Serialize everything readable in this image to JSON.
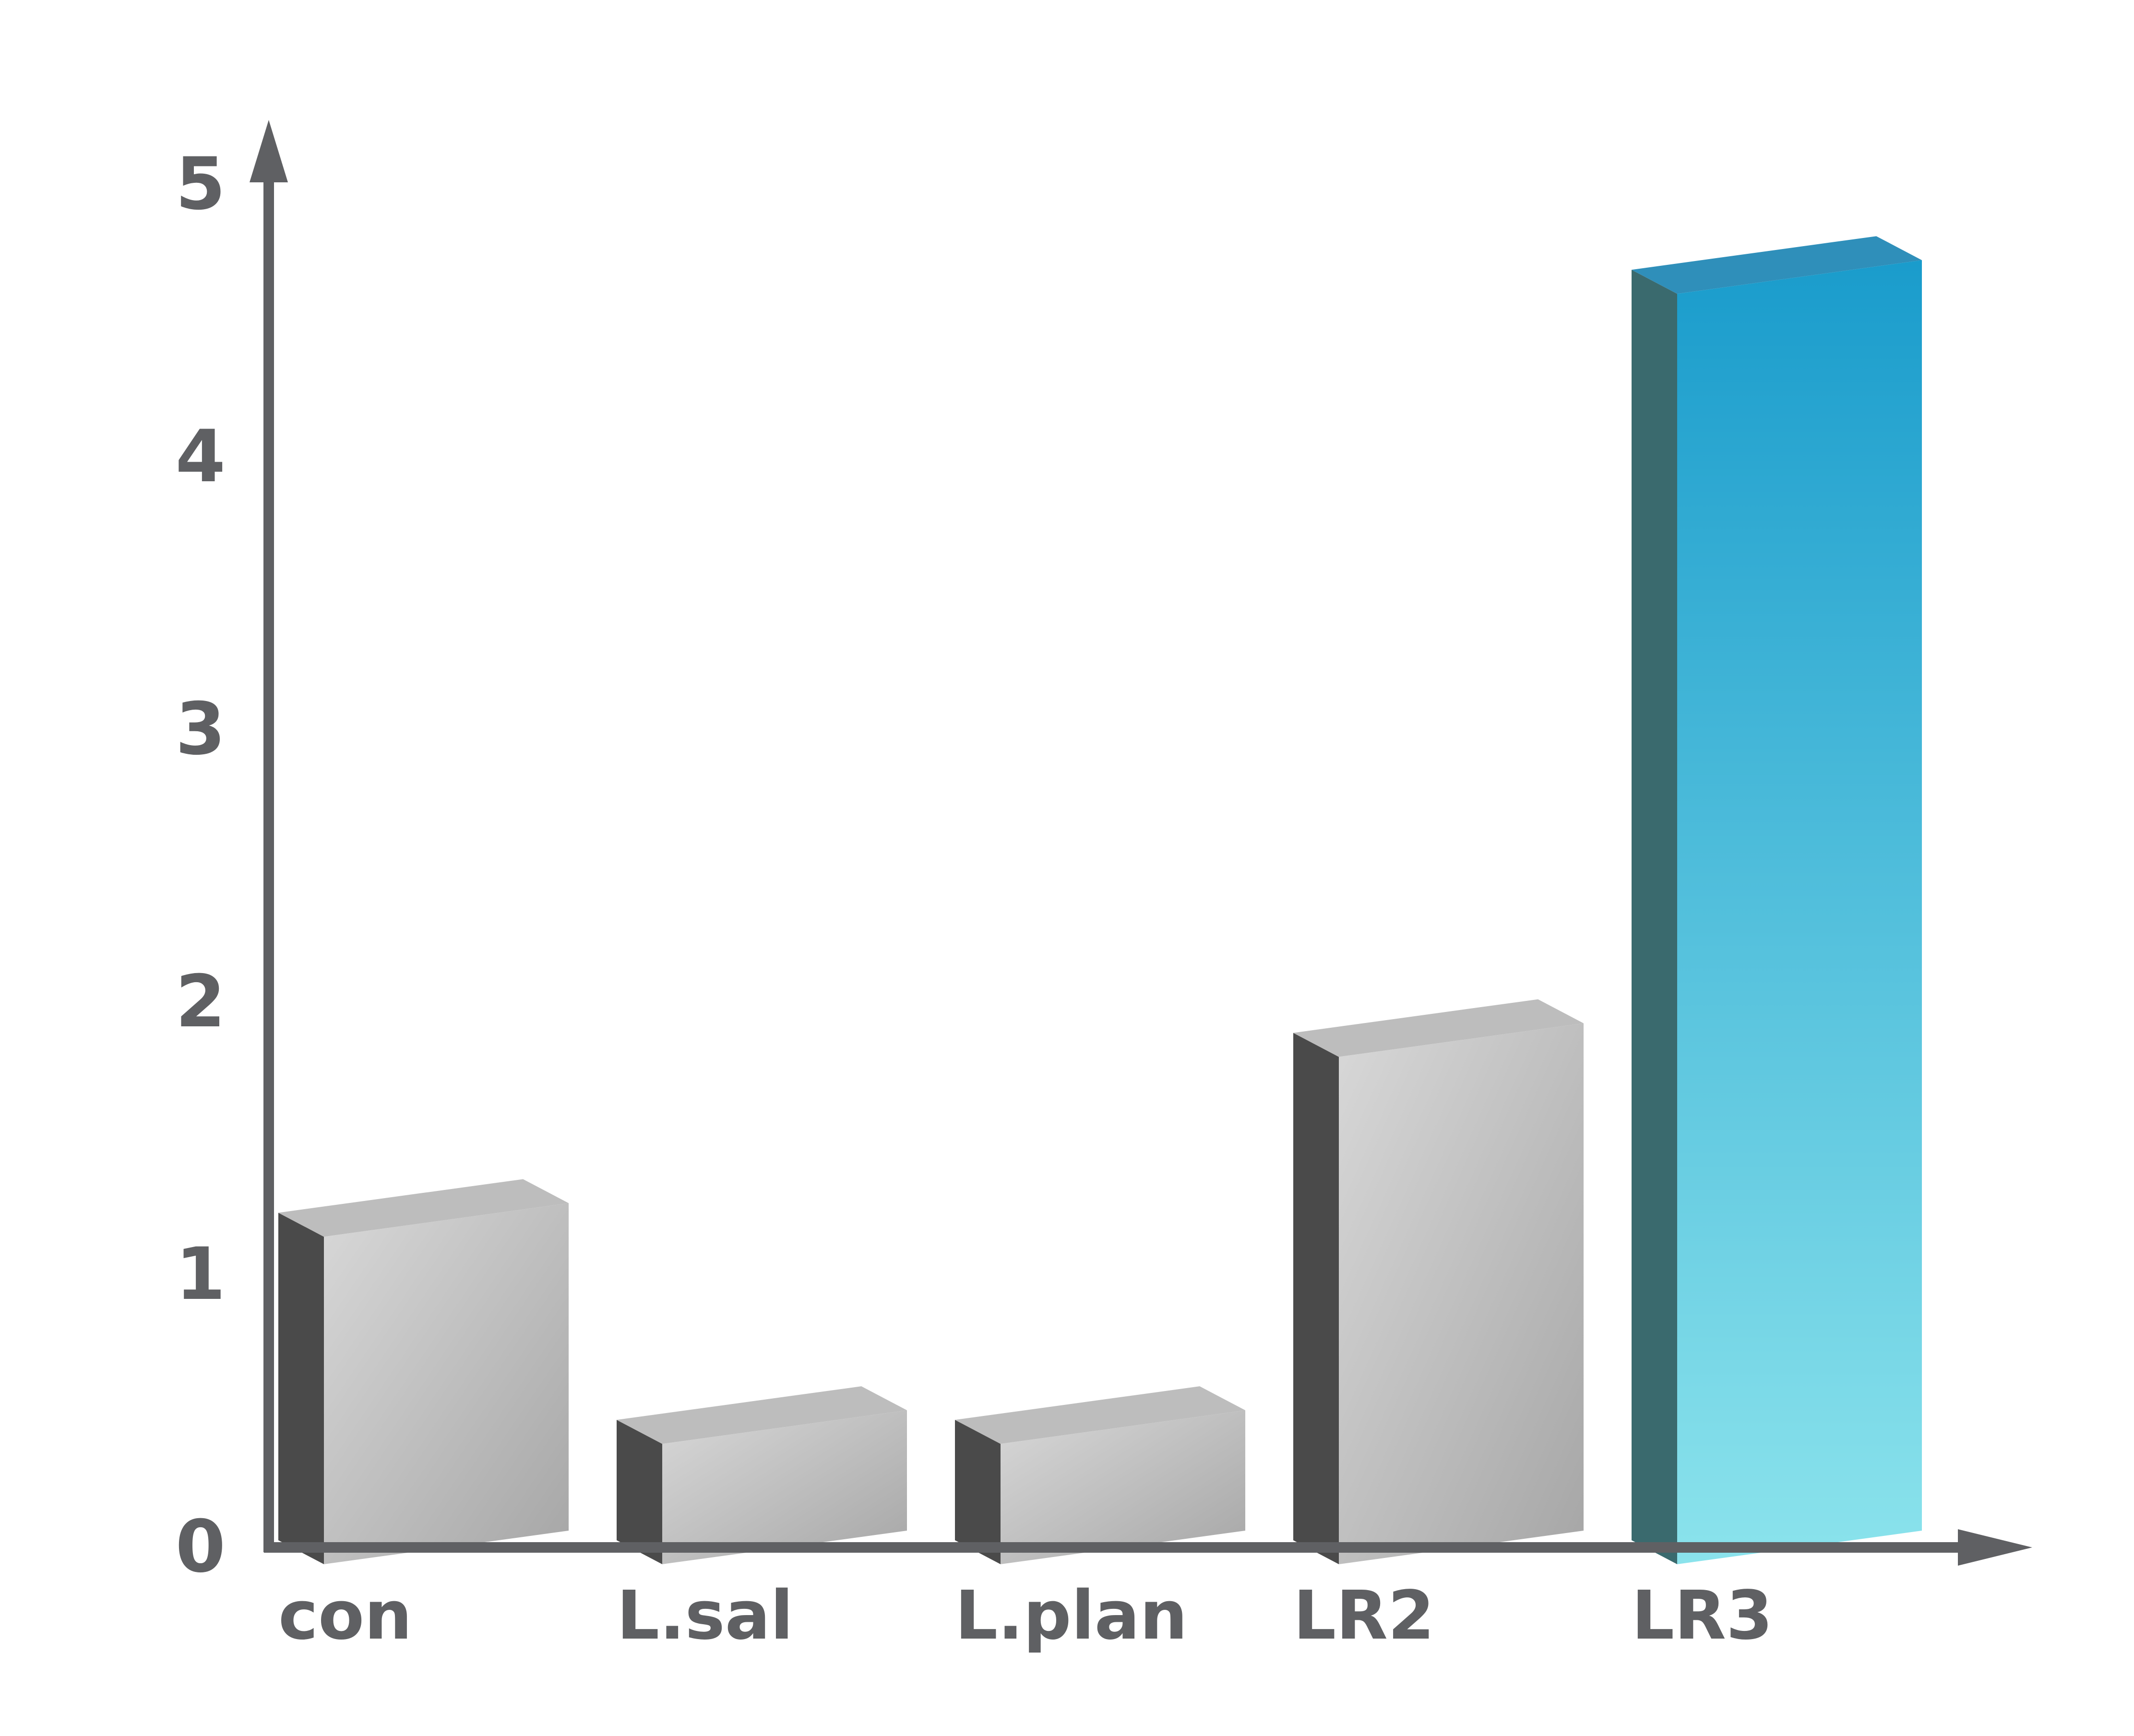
{
  "chart_data": {
    "type": "bar",
    "categories": [
      "con",
      "L.sal",
      "L.plan",
      "LR2",
      "LR3"
    ],
    "values": [
      1.14,
      0.38,
      0.38,
      1.8,
      4.6
    ],
    "yticks": [
      "0",
      "1",
      "2",
      "3",
      "4",
      "5"
    ],
    "ylim": [
      0,
      5
    ],
    "title": "",
    "xlabel": "",
    "ylabel": "",
    "grid": false,
    "legend": "none",
    "style": "3d-box",
    "colors": {
      "axis": "#5f6063",
      "default_front_top": "#d8d8d8",
      "default_front_bottom": "#a6a6a6",
      "default_side": "#4a4a4a",
      "default_top": "#bdbdbd",
      "highlight_front_top": "#1a9ccc",
      "highlight_front_bottom": "#8be3ec",
      "highlight_side": "#3a6a6e",
      "highlight_top": "#2f8fba"
    },
    "highlight_index": 4
  }
}
